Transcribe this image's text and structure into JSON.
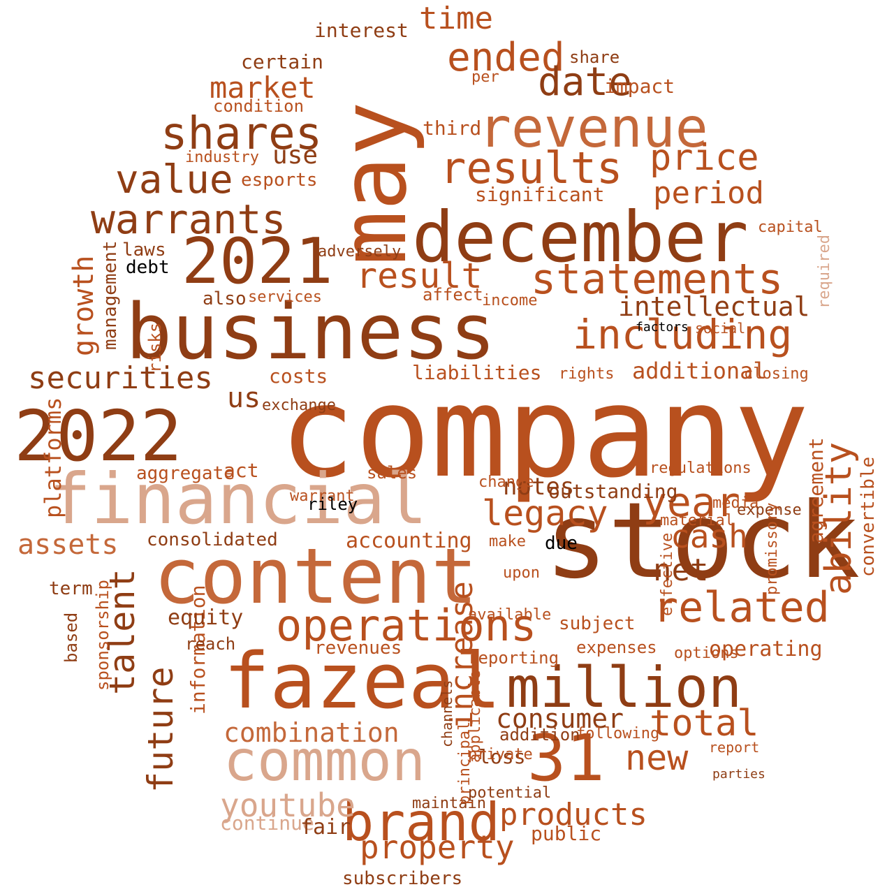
{
  "palette": {
    "primary": "#b8501e",
    "dark": "#8f3d14",
    "medium": "#c4683a",
    "light": "#d9a68c",
    "pale": "#e8c9b8",
    "black": "#000000"
  },
  "words": [
    "company",
    "business",
    "stock",
    "may",
    "december",
    "fazeal",
    "financial",
    "content",
    "2022",
    "revenue",
    "31",
    "million",
    "common",
    "brand",
    "2021",
    "shares",
    "results",
    "operations",
    "statements",
    "warrants",
    "including",
    "value",
    "ended",
    "date",
    "price",
    "future",
    "talent",
    "period",
    "year",
    "securities",
    "related",
    "total",
    "consumer",
    "property",
    "products",
    "new",
    "intellectual",
    "combination",
    "growth",
    "result",
    "legacy",
    "ability",
    "market",
    "cash",
    "youtube",
    "time",
    "assets",
    "additional",
    "accounting",
    "net",
    "us",
    "operating",
    "use",
    "increase",
    "liabilities",
    "information",
    "consolidated",
    "costs",
    "significant",
    "platforms",
    "interest",
    "certain",
    "impact",
    "condition",
    "notes",
    "revenues",
    "public",
    "third",
    "debt",
    "management",
    "esports",
    "convertible",
    "continue",
    "loss",
    "agreement",
    "equity",
    "subject",
    "fair",
    "share",
    "per",
    "subscribers",
    "outstanding",
    "addition",
    "reporting",
    "act",
    "maintain",
    "private",
    "laws",
    "risks",
    "industry",
    "also",
    "term",
    "based",
    "sponsorship",
    "aggregate",
    "sales",
    "warrant",
    "closing",
    "regulations",
    "options",
    "expenses",
    "exchange",
    "rights",
    "capital",
    "material",
    "adversely",
    "affect",
    "income",
    "services",
    "factors",
    "social",
    "media",
    "effective",
    "expense",
    "due",
    "upon",
    "make",
    "change",
    "available",
    "riley",
    "reach",
    "promissory",
    "required",
    "following",
    "report",
    "parties",
    "potential",
    "principal",
    "applicable",
    "channels"
  ]
}
